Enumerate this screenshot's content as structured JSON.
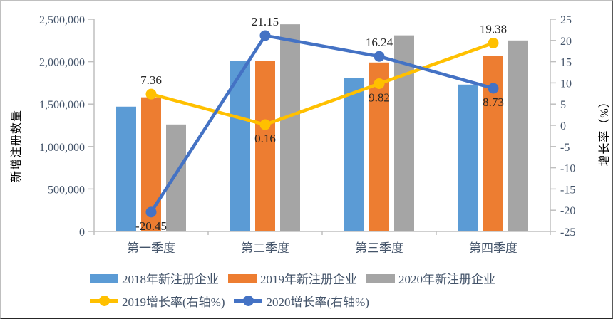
{
  "colors": {
    "axis_line": "#bfbfbf",
    "axis_text": "#44546A",
    "data_label": "#262626",
    "background": "#ffffff"
  },
  "chart_data": {
    "type": "bar+line combo",
    "categories": [
      "第一季度",
      "第二季度",
      "第三季度",
      "第四季度"
    ],
    "bar_series": [
      {
        "name": "2018年新注册企业",
        "color": "#5B9BD5",
        "values": [
          1470000,
          2010000,
          1810000,
          1730000
        ]
      },
      {
        "name": "2019年新注册企业",
        "color": "#ED7D31",
        "values": [
          1580000,
          2010000,
          1990000,
          2070000
        ]
      },
      {
        "name": "2020年新注册企业",
        "color": "#A5A5A5",
        "values": [
          1260000,
          2440000,
          2310000,
          2250000
        ]
      }
    ],
    "line_series": [
      {
        "name": "2019增长率(右轴%)",
        "color": "#FFC000",
        "values": [
          7.36,
          0.16,
          9.82,
          19.38
        ],
        "label_side": [
          "above",
          "below",
          "below",
          "above"
        ]
      },
      {
        "name": "2020增长率(右轴%)",
        "color": "#4472C4",
        "values": [
          -20.45,
          21.15,
          16.24,
          8.73
        ],
        "label_side": [
          "below",
          "above",
          "above",
          "below"
        ]
      }
    ],
    "ylabel_left": "新增注册数量",
    "ylabel_right": "增长率（%）",
    "left_axis": {
      "min": 0,
      "max": 2500000,
      "step": 500000,
      "tick_labels": [
        "0",
        "500,000",
        "1,000,000",
        "1,500,000",
        "2,000,000",
        "2,500,000"
      ]
    },
    "right_axis": {
      "min": -25,
      "max": 25,
      "step": 5,
      "tick_labels": [
        "-25",
        "-20",
        "-15",
        "-10",
        "-5",
        "0",
        "5",
        "10",
        "15",
        "20",
        "25"
      ]
    },
    "grid": "off",
    "legend_position": "bottom"
  }
}
